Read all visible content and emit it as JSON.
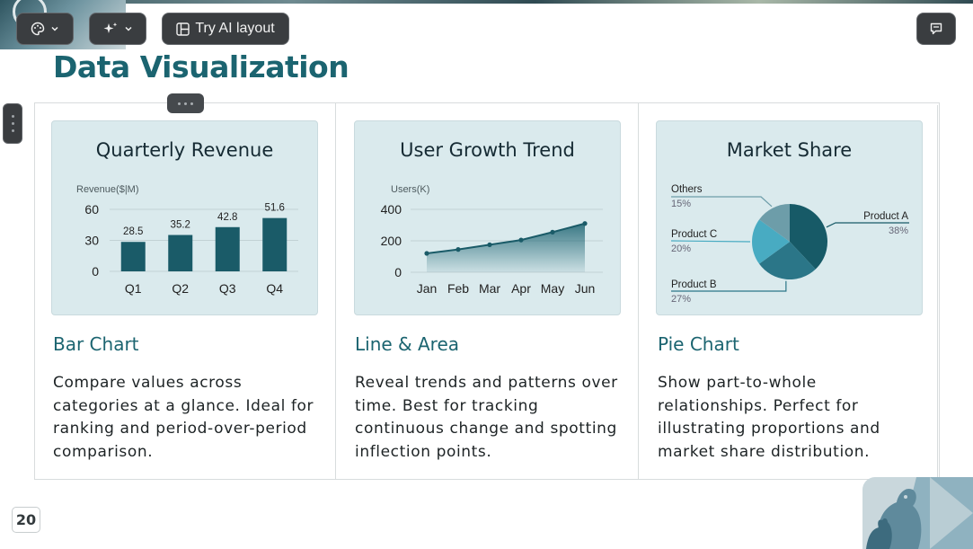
{
  "toolbar": {
    "ai_layout_label": "Try AI layout"
  },
  "slide": {
    "title": "Data Visualization",
    "page_number": "20",
    "cards": [
      {
        "chart_title": "Quarterly Revenue",
        "heading": "Bar Chart",
        "description": "Compare values across categories at a glance. Ideal for ranking and period-over-period comparison."
      },
      {
        "chart_title": "User Growth Trend",
        "heading": "Line & Area",
        "description": "Reveal trends and patterns over time. Best for tracking continuous change and spotting inflection points."
      },
      {
        "chart_title": "Market Share",
        "heading": "Pie Chart",
        "description": "Show part-to-whole relationships. Perfect for illustrating proportions and market share distribution."
      }
    ]
  },
  "colors": {
    "accent": "#1b6470",
    "bar": "#1a5b68",
    "card_bg": "#daeaed"
  },
  "chart_data": [
    {
      "type": "bar",
      "title": "Quarterly Revenue",
      "ylabel": "Revenue($|M)",
      "categories": [
        "Q1",
        "Q2",
        "Q3",
        "Q4"
      ],
      "values": [
        28.5,
        35.2,
        42.8,
        51.6
      ],
      "value_labels": [
        "28.5",
        "35.2",
        "42.8",
        "51.6"
      ],
      "yticks": [
        "0",
        "30",
        "60"
      ],
      "ylim": [
        0,
        60
      ],
      "grid": true
    },
    {
      "type": "area",
      "title": "User Growth Trend",
      "ylabel": "Users(K)",
      "categories": [
        "Jan",
        "Feb",
        "Mar",
        "Apr",
        "May",
        "Jun"
      ],
      "values": [
        120,
        145,
        175,
        205,
        255,
        310
      ],
      "yticks": [
        "0",
        "200",
        "400"
      ],
      "ylim": [
        0,
        400
      ],
      "grid": true
    },
    {
      "type": "pie",
      "title": "Market Share",
      "slices": [
        {
          "label": "Product A",
          "value": 38,
          "pct": "38%",
          "color": "#175a67"
        },
        {
          "label": "Product B",
          "value": 27,
          "pct": "27%",
          "color": "#2b7688"
        },
        {
          "label": "Product C",
          "value": 20,
          "pct": "20%",
          "color": "#48abc2"
        },
        {
          "label": "Others",
          "value": 15,
          "pct": "15%",
          "color": "#6d9da9"
        }
      ]
    }
  ]
}
